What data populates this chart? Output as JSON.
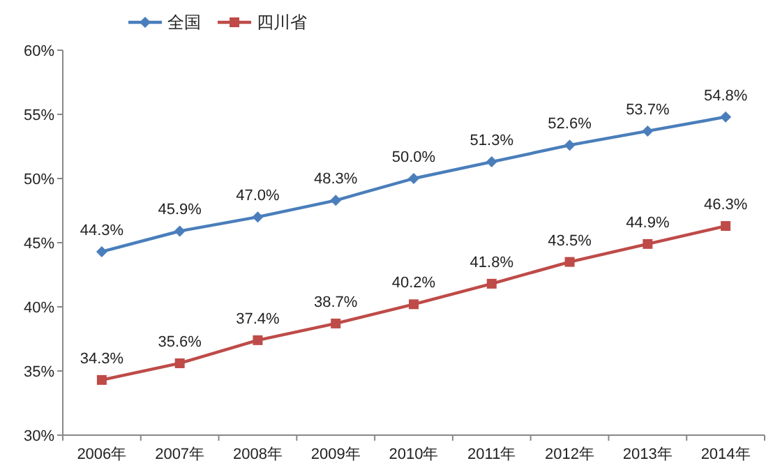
{
  "chart_data": {
    "type": "line",
    "categories": [
      "2006年",
      "2007年",
      "2008年",
      "2009年",
      "2010年",
      "2011年",
      "2012年",
      "2013年",
      "2014年"
    ],
    "series": [
      {
        "name": "全国",
        "color": "#4a7ebb",
        "marker": "diamond",
        "values": [
          44.3,
          45.9,
          47.0,
          48.3,
          50.0,
          51.3,
          52.6,
          53.7,
          54.8
        ],
        "value_labels": [
          "44.3%",
          "45.9%",
          "47.0%",
          "48.3%",
          "50.0%",
          "51.3%",
          "52.6%",
          "53.7%",
          "54.8%"
        ]
      },
      {
        "name": "四川省",
        "color": "#be4b48",
        "marker": "square",
        "values": [
          34.3,
          35.6,
          37.4,
          38.7,
          40.2,
          41.8,
          43.5,
          44.9,
          46.3
        ],
        "value_labels": [
          "34.3%",
          "35.6%",
          "37.4%",
          "38.7%",
          "40.2%",
          "41.8%",
          "43.5%",
          "44.9%",
          "46.3%"
        ]
      }
    ],
    "ylim": [
      30,
      60
    ],
    "yticks": [
      {
        "value": 30,
        "label": "30%"
      },
      {
        "value": 35,
        "label": "35%"
      },
      {
        "value": 40,
        "label": "40%"
      },
      {
        "value": 45,
        "label": "45%"
      },
      {
        "value": 50,
        "label": "50%"
      },
      {
        "value": 55,
        "label": "55%"
      },
      {
        "value": 60,
        "label": "60%"
      }
    ],
    "legend": "top left",
    "grid": false
  }
}
